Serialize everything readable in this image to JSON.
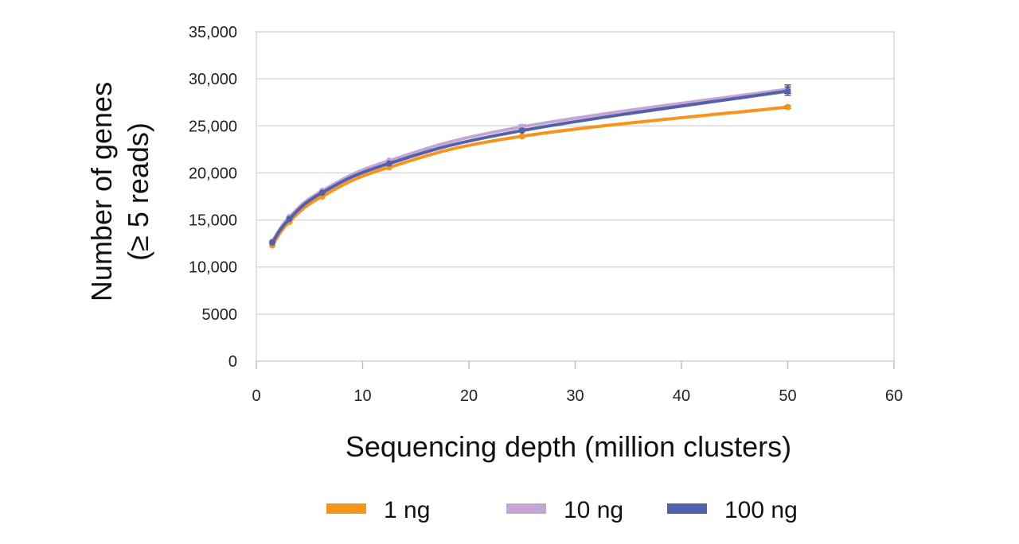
{
  "chart_data": {
    "type": "line",
    "title": "",
    "xlabel": "Sequencing depth (million clusters)",
    "ylabel_lines": [
      "Number of genes",
      "(≥ 5 reads)"
    ],
    "xlim": [
      0,
      60
    ],
    "ylim": [
      0,
      35000
    ],
    "x_ticks": [
      0,
      10,
      20,
      30,
      40,
      50,
      60
    ],
    "x_tick_labels": [
      "0",
      "10",
      "20",
      "30",
      "40",
      "50",
      "60"
    ],
    "y_ticks": [
      0,
      5000,
      10000,
      15000,
      20000,
      25000,
      30000,
      35000
    ],
    "y_tick_labels": [
      "0",
      "5000",
      "10,000",
      "15,000",
      "20,000",
      "25,000",
      "30,000",
      "35,000"
    ],
    "grid": "horizontal",
    "legend_position": "bottom",
    "x": [
      1.5,
      3.1,
      6.2,
      12.5,
      25,
      50
    ],
    "series": [
      {
        "name": "1 ng",
        "color": "#F7941D",
        "values": [
          12300,
          14800,
          17500,
          20600,
          23900,
          27000
        ],
        "error": [
          0,
          0,
          0,
          0,
          0,
          150
        ]
      },
      {
        "name": "10 ng",
        "color": "#C3A6D4",
        "values": [
          12700,
          15300,
          18100,
          21300,
          24900,
          28900
        ],
        "error": [
          0,
          0,
          0,
          0,
          200,
          450
        ]
      },
      {
        "name": "100 ng",
        "color": "#5560AB",
        "values": [
          12600,
          15100,
          17900,
          21000,
          24500,
          28700
        ],
        "error": [
          0,
          0,
          0,
          0,
          0,
          450
        ]
      }
    ]
  }
}
